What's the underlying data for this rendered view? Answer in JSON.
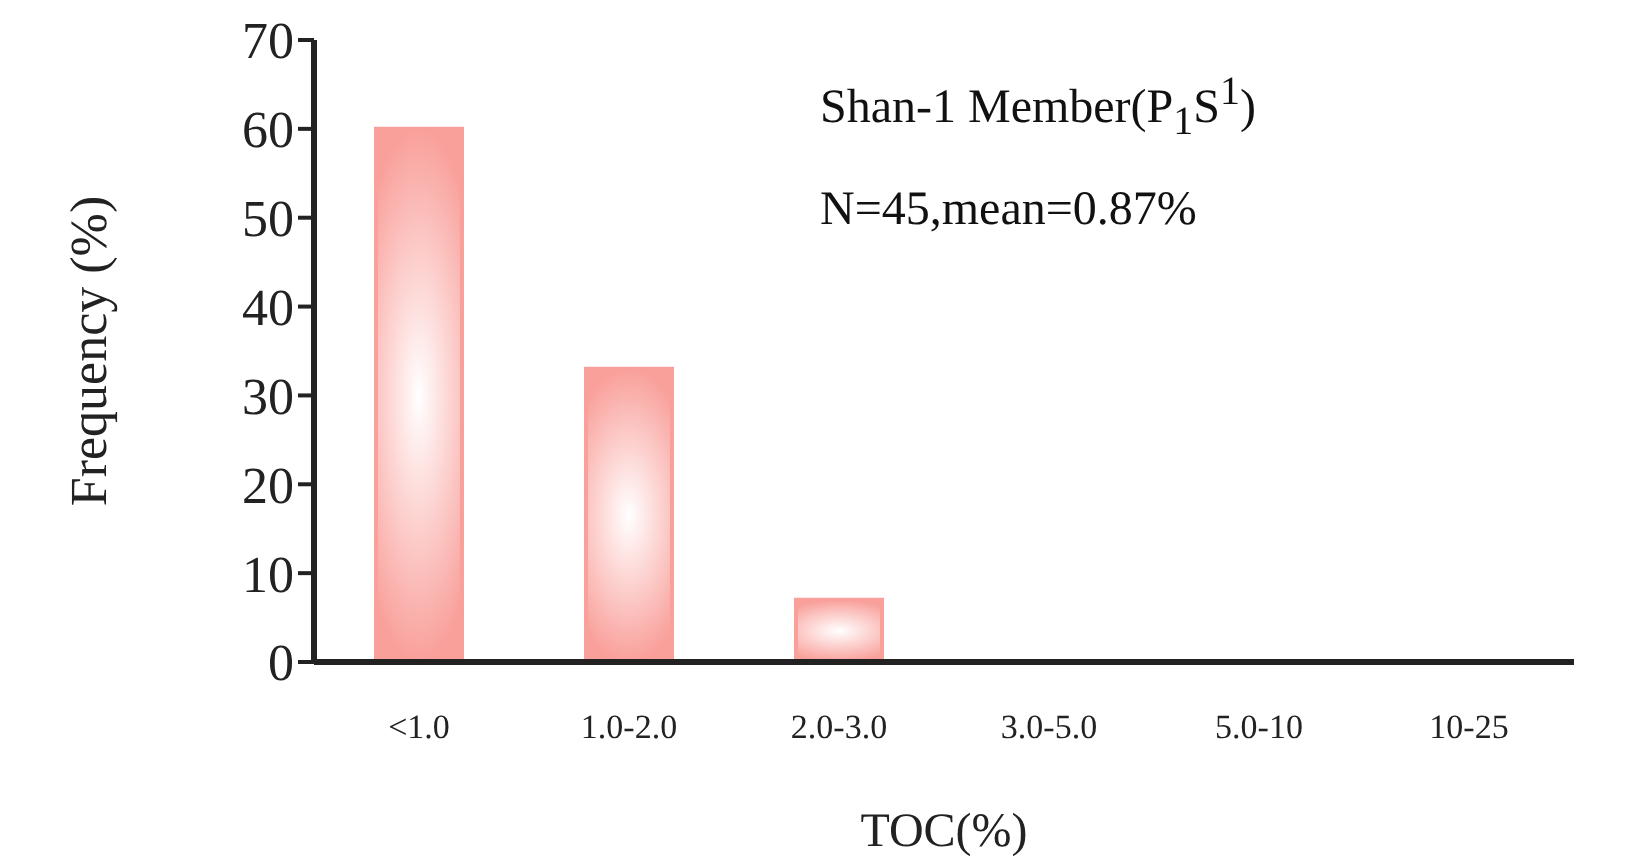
{
  "chart_data": {
    "type": "bar",
    "xlabel": "TOC(%)",
    "ylabel": "Frequency (%)",
    "annotations": [
      "Shan-1 Member(P$_{1}$S$^{1}$)",
      "N=45,mean=0.87%"
    ],
    "categories": [
      "<1.0",
      "1.0-2.0",
      "2.0-3.0",
      "3.0-5.0",
      "5.0-10",
      "10-25"
    ],
    "values": [
      60,
      33,
      7,
      0,
      0,
      0
    ],
    "color": "#f9a09b",
    "ylim": [
      0,
      70
    ],
    "yticks": [
      0,
      10,
      20,
      30,
      40,
      50,
      60,
      70
    ],
    "grid": false,
    "legend": false
  }
}
